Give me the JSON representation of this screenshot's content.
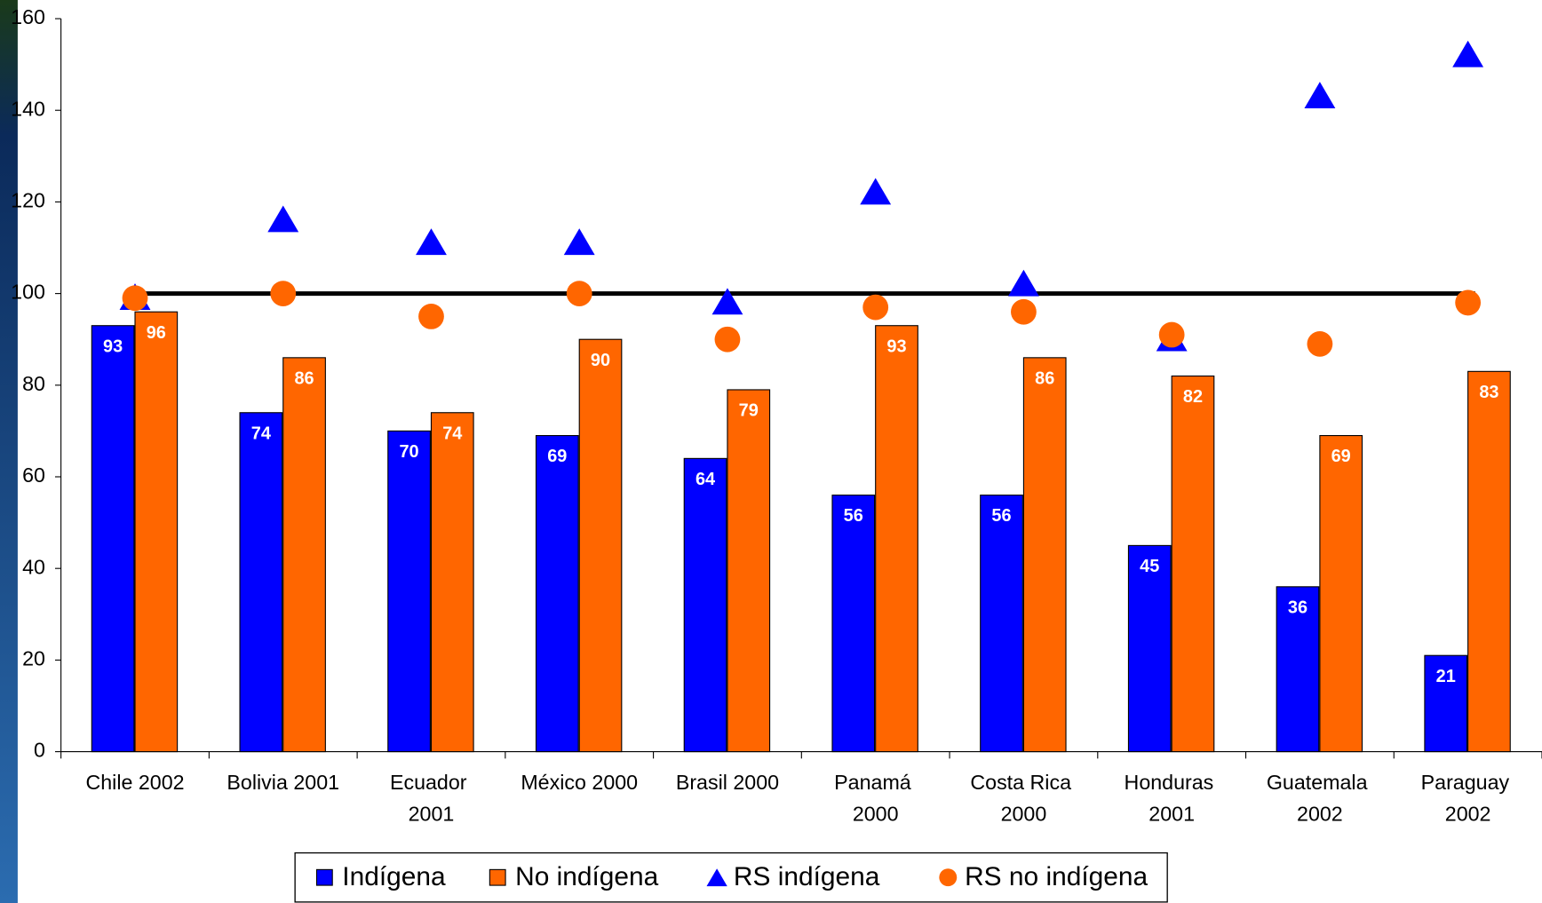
{
  "chart_data": {
    "type": "bar",
    "categories": [
      "Chile 2002",
      "Bolivia 2001",
      "Ecuador 2001",
      "México 2000",
      "Brasil 2000",
      "Panamá 2000",
      "Costa Rica 2000",
      "Honduras 2001",
      "Guatemala 2002",
      "Paraguay 2002"
    ],
    "series": [
      {
        "name": "Indígena",
        "type": "bar",
        "color": "#0000ff",
        "values": [
          93,
          74,
          70,
          69,
          64,
          56,
          56,
          45,
          36,
          21
        ]
      },
      {
        "name": "No indígena",
        "type": "bar",
        "color": "#ff6600",
        "values": [
          96,
          86,
          74,
          90,
          79,
          93,
          86,
          82,
          69,
          83
        ]
      },
      {
        "name": "RS indígena",
        "type": "triangle",
        "color": "#0000ff",
        "values": [
          99,
          116,
          111,
          111,
          98,
          122,
          102,
          90,
          143,
          152
        ]
      },
      {
        "name": "RS no indígena",
        "type": "circle",
        "color": "#ff6600",
        "values": [
          99,
          100,
          95,
          100,
          90,
          97,
          96,
          91,
          89,
          98
        ]
      }
    ],
    "reference_line": 100,
    "ylim": [
      0,
      160
    ],
    "yticks": [
      0,
      20,
      40,
      60,
      80,
      100,
      120,
      140,
      160
    ],
    "legend": "bottom"
  }
}
